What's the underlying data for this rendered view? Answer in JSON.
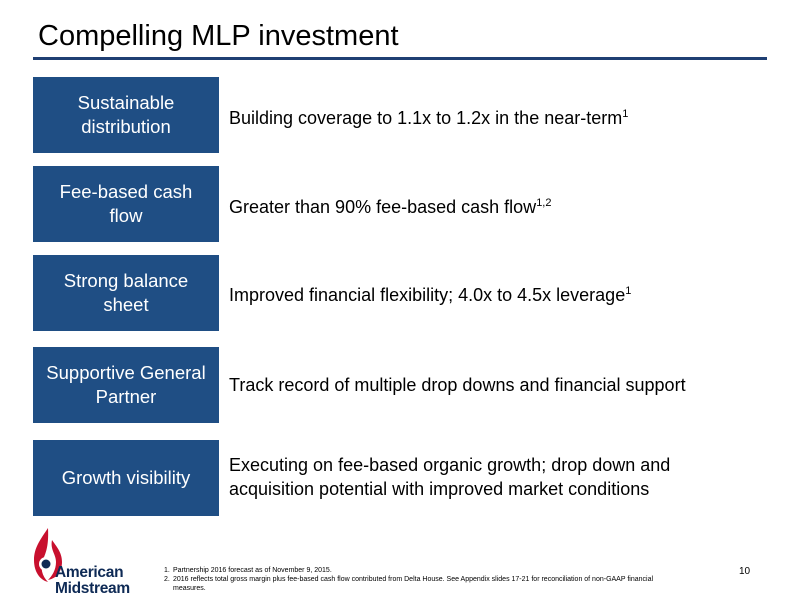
{
  "title": "Compelling MLP investment",
  "rows": [
    {
      "label": "Sustainable distribution",
      "text": "Building coverage to 1.1x to 1.2x in the near-term",
      "sup": "1"
    },
    {
      "label": "Fee-based cash flow",
      "text": "Greater than 90% fee-based cash flow",
      "sup": "1,2"
    },
    {
      "label": "Strong balance sheet",
      "text": "Improved financial flexibility; 4.0x to 4.5x leverage",
      "sup": "1"
    },
    {
      "label": "Supportive General Partner",
      "text": "Track record of multiple drop downs and financial support",
      "sup": ""
    },
    {
      "label": "Growth visibility",
      "text": "Executing on fee-based organic growth; drop down and acquisition potential with improved market conditions",
      "sup": ""
    }
  ],
  "footnotes": [
    {
      "num": "1.",
      "text": "Partnership 2016 forecast as of November 9, 2015."
    },
    {
      "num": "2.",
      "text": "2016 reflects total gross margin plus fee-based cash flow contributed from Delta House. See Appendix slides 17-21 for reconciliation of non-GAAP financial measures."
    }
  ],
  "page_number": "10",
  "logo": {
    "line1": "American",
    "line2": "Midstream",
    "icon": "flame-drop-logo-icon"
  }
}
